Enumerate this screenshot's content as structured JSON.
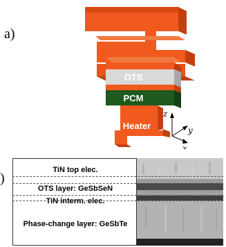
{
  "panels": {
    "a": "a)",
    "b": ")"
  },
  "stack": {
    "ots": "OTS",
    "pcm": "PCM",
    "heater": "Heater"
  },
  "axes": {
    "z": "z",
    "y": "y",
    "x": "x"
  },
  "tem": {
    "rows": [
      "TiN top elec.",
      "OTS layer: GeSbSeN",
      "TiN interm. elec.",
      "Phase-change layer: GeSbTe"
    ]
  },
  "colors": {
    "electrode": "#f05a1e",
    "ots": "#d9d9d9",
    "pcm": "#1e5a1e"
  }
}
